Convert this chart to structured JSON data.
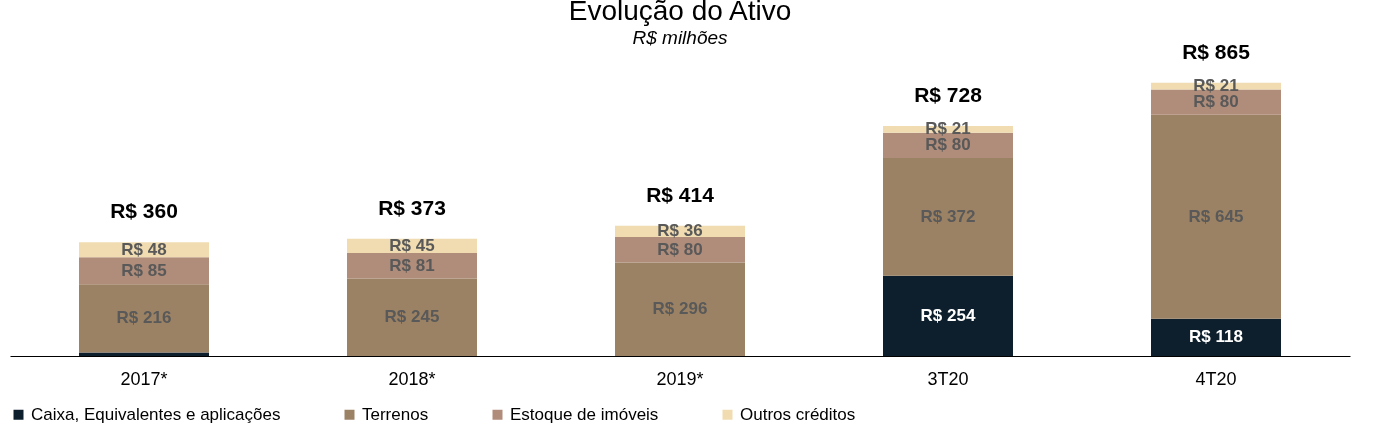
{
  "chart_data": {
    "type": "bar",
    "title": "Evolução do Ativo",
    "subtitle": "R$ milhões",
    "stacked": true,
    "legend": "bottom",
    "grid": false,
    "categories": [
      "2017*",
      "2018*",
      "2019*",
      "3T20",
      "4T20"
    ],
    "series": [
      {
        "name": "Caixa, Equivalentes e aplicações",
        "color": "#0d1f2d",
        "values": [
          11,
          null,
          null,
          254,
          118
        ],
        "value_labels": [
          null,
          null,
          null,
          "R$ 254",
          "R$ 118"
        ]
      },
      {
        "name": "Terrenos",
        "color": "#9c8264",
        "values": [
          216,
          245,
          296,
          372,
          645
        ],
        "value_labels": [
          "R$ 216",
          "R$ 245",
          "R$ 296",
          "R$ 372",
          "R$ 645"
        ]
      },
      {
        "name": "Estoque de imóveis",
        "color": "#b08c7a",
        "values": [
          85,
          81,
          80,
          80,
          80
        ],
        "value_labels": [
          "R$ 85",
          "R$ 81",
          "R$ 80",
          "R$ 80",
          "R$ 80"
        ]
      },
      {
        "name": "Outros créditos",
        "color": "#f0dcb0",
        "values": [
          48,
          45,
          36,
          21,
          21
        ],
        "value_labels": [
          "R$ 48",
          "R$ 45",
          "R$ 36",
          "R$ 21",
          "R$ 21"
        ]
      }
    ],
    "totals": [
      "R$ 360",
      "R$ 373",
      "R$ 414",
      "R$ 728",
      "R$ 865"
    ]
  }
}
